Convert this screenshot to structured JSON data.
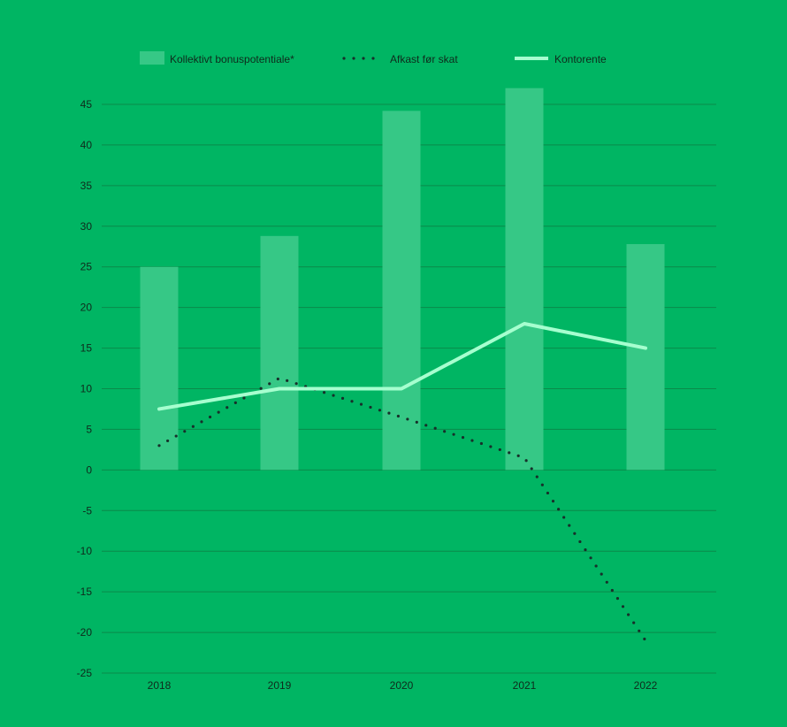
{
  "colors": {
    "background": "#00b563",
    "bar": "#36c886",
    "kontorente": "#a6ffcf",
    "afkast": "#17302a",
    "grid": "#0a8a4a",
    "text": "#0f2a1c"
  },
  "chart_data": {
    "type": "bar",
    "categories": [
      "2018",
      "2019",
      "2020",
      "2021",
      "2022"
    ],
    "series": [
      {
        "name": "Kollektivt bonuspotentiale*",
        "type": "bar",
        "values": [
          25,
          28.8,
          44.2,
          47,
          27.8
        ]
      },
      {
        "name": "Afkast før skat",
        "type": "line",
        "style": "dotted",
        "values": [
          3,
          11.3,
          6.5,
          1.5,
          -21
        ]
      },
      {
        "name": "Kontorente",
        "type": "line",
        "style": "solid",
        "values": [
          7.5,
          10,
          10,
          18,
          15
        ]
      }
    ],
    "yticks": [
      "45",
      "40",
      "35",
      "30",
      "25",
      "20",
      "15",
      "10",
      "5",
      "0",
      "-5",
      "-10",
      "-15",
      "-20",
      "-25"
    ],
    "ylim": [
      -25,
      45
    ],
    "grid": true,
    "legend_position": "top"
  }
}
